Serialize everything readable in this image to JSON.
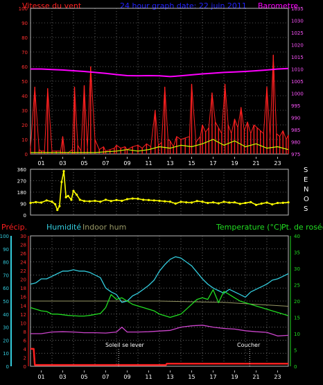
{
  "colors": {
    "wind": "#ff2020",
    "gust_base": "#ffffff",
    "gust_highlight": "#ccff00",
    "barometer": "#ff00ff",
    "direction": "#ffff00",
    "humidity": "#33ccdd",
    "indoor_hum": "#999966",
    "temperature": "#22dd22",
    "dewpoint": "#cc44cc",
    "precip": "#ff2020",
    "title": "#2222ff",
    "axis": "#bbbbbb",
    "grid": "#aaaaaa"
  },
  "chart_data": [
    {
      "type": "line",
      "title": "24 hour graph date: 22 juin 2011",
      "left_label": "Vitesse du vent",
      "right_label": "Barometre",
      "x_labels": [
        "01",
        "03",
        "05",
        "07",
        "09",
        "11",
        "13",
        "15",
        "17",
        "19",
        "21",
        "23"
      ],
      "y_left_ticks": [
        "0",
        "10",
        "20",
        "30",
        "40",
        "50",
        "60",
        "70",
        "80",
        "90",
        "100"
      ],
      "y_right_ticks": [
        "975",
        "980",
        "985",
        "990",
        "995",
        "1000",
        "1005",
        "1010",
        "1015",
        "1020",
        "1025",
        "1030",
        "1035"
      ],
      "y_left_range": [
        0,
        100
      ],
      "y_right_range": [
        975,
        1035
      ],
      "grid": true,
      "series": [
        {
          "key": "barometer",
          "axis": "right",
          "x": [
            0,
            1,
            2,
            3,
            4,
            5,
            6,
            7,
            8,
            9,
            10,
            11,
            12,
            13,
            14,
            15,
            16,
            17,
            18,
            19,
            20,
            21,
            22,
            23,
            24
          ],
          "values": [
            1010,
            1010,
            1009.8,
            1009.6,
            1009.3,
            1009,
            1008.6,
            1008.2,
            1007.7,
            1007.3,
            1007.2,
            1007.3,
            1007.2,
            1006.9,
            1007.2,
            1007.6,
            1008,
            1008.3,
            1008.6,
            1008.8,
            1009,
            1009.3,
            1009.6,
            1010,
            1010.2
          ]
        },
        {
          "key": "wind",
          "axis": "left",
          "x": [
            0,
            0.4,
            0.8,
            1,
            1.3,
            1.6,
            2,
            2.4,
            2.8,
            3,
            3.2,
            3.5,
            3.9,
            4.1,
            4.4,
            4.7,
            5,
            5.3,
            5.6,
            6,
            6.4,
            6.8,
            7,
            7.4,
            7.8,
            8,
            8.4,
            8.8,
            9,
            9.5,
            10,
            10.4,
            10.8,
            11.2,
            11.6,
            11.9,
            12.2,
            12.5,
            12.8,
            13,
            13.3,
            13.6,
            14,
            14.4,
            14.8,
            15,
            15.4,
            15.8,
            16,
            16.3,
            16.6,
            16.9,
            17.2,
            17.5,
            17.8,
            18.1,
            18.4,
            18.7,
            19,
            19.3,
            19.6,
            19.9,
            20.2,
            20.5,
            20.8,
            21.1,
            21.4,
            21.7,
            22,
            22.3,
            22.6,
            22.9,
            23.2,
            23.5,
            23.8,
            24
          ],
          "values": [
            4,
            46,
            3,
            2,
            2,
            45,
            2,
            2,
            2,
            12,
            1,
            1,
            3,
            46,
            6,
            2,
            47,
            4,
            60,
            10,
            3,
            5,
            2,
            3,
            4,
            6,
            4,
            5,
            3,
            5,
            6,
            4,
            7,
            5,
            30,
            6,
            8,
            46,
            10,
            9,
            5,
            12,
            10,
            11,
            12,
            48,
            8,
            12,
            20,
            15,
            18,
            42,
            22,
            18,
            14,
            48,
            20,
            14,
            24,
            18,
            32,
            16,
            22,
            14,
            20,
            18,
            16,
            14,
            46,
            12,
            68,
            14,
            12,
            16,
            10,
            13
          ]
        },
        {
          "key": "gust",
          "axis": "left",
          "x": [
            0,
            2,
            4,
            6,
            8,
            9,
            10,
            11,
            12,
            13,
            14,
            15,
            16,
            17,
            18,
            19,
            20,
            21,
            22,
            23,
            24
          ],
          "values": [
            1,
            1,
            1,
            1,
            2,
            3,
            2,
            3,
            5,
            4,
            6,
            5,
            7,
            10,
            6,
            9,
            5,
            7,
            4,
            5,
            3
          ]
        }
      ]
    },
    {
      "type": "scatter",
      "right_label": "S E N O S",
      "y_ticks": [
        "0",
        "90",
        "180",
        "270",
        "360"
      ],
      "y_range": [
        0,
        360
      ],
      "grid": true,
      "series": [
        {
          "key": "direction",
          "x": [
            0,
            0.5,
            1,
            1.5,
            2,
            2.3,
            2.5,
            2.7,
            2.9,
            3.1,
            3.3,
            3.5,
            3.8,
            4,
            4.3,
            4.6,
            5,
            5.5,
            6,
            6.5,
            7,
            7.5,
            8,
            8.5,
            9,
            9.5,
            10,
            10.5,
            11,
            11.5,
            12,
            12.5,
            13,
            13.5,
            14,
            14.5,
            15,
            15.5,
            16,
            16.5,
            17,
            17.5,
            18,
            18.5,
            19,
            19.5,
            20,
            20.5,
            21,
            21.5,
            22,
            22.5,
            23,
            23.5,
            24
          ],
          "values": [
            95,
            102,
            98,
            115,
            105,
            85,
            40,
            70,
            260,
            345,
            140,
            150,
            120,
            190,
            160,
            120,
            110,
            108,
            112,
            105,
            120,
            110,
            118,
            112,
            125,
            130,
            128,
            120,
            118,
            115,
            112,
            108,
            105,
            90,
            104,
            100,
            98,
            110,
            105,
            95,
            100,
            92,
            104,
            98,
            100,
            88,
            95,
            102,
            80,
            90,
            98,
            84,
            95,
            96,
            100
          ]
        }
      ]
    },
    {
      "type": "line",
      "labels": [
        "Précip.",
        "Humidité",
        "Indoor hum",
        "Temperature (°C)",
        "Pt. de rosée"
      ],
      "y_precip_ticks": [
        "0",
        "2",
        "4",
        "6",
        "8",
        "10",
        "12",
        "14",
        "16",
        "18",
        "20",
        "22",
        "24",
        "26",
        "28",
        "30"
      ],
      "y_humidity_ticks": [
        "0",
        "10",
        "20",
        "30",
        "40",
        "50",
        "60",
        "70",
        "80",
        "90",
        "100"
      ],
      "y_temp_ticks": [
        "0",
        "5",
        "10",
        "15",
        "20",
        "25",
        "30",
        "35",
        "40"
      ],
      "y_humidity_range": [
        0,
        100
      ],
      "y_temp_range": [
        0,
        40
      ],
      "y_precip_range": [
        0,
        30
      ],
      "x_labels": [
        "01",
        "03",
        "05",
        "07",
        "09",
        "11",
        "13",
        "15",
        "17",
        "19",
        "21",
        "23"
      ],
      "annotations": [
        "Soleil se lever",
        "Coucher"
      ],
      "grid": true,
      "series": [
        {
          "key": "humidity",
          "axis": "humidity",
          "x": [
            0,
            0.5,
            1,
            1.5,
            2,
            2.5,
            3,
            3.5,
            4,
            4.5,
            5,
            5.5,
            6,
            6.5,
            7,
            7.5,
            8,
            8.5,
            9,
            9.5,
            10,
            10.5,
            11,
            11.5,
            12,
            12.5,
            13,
            13.5,
            14,
            14.5,
            15,
            15.5,
            16,
            16.5,
            17,
            17.5,
            18,
            18.5,
            19,
            19.5,
            20,
            20.5,
            21,
            21.5,
            22,
            22.5,
            23,
            23.5,
            24
          ],
          "values": [
            63,
            64,
            67,
            67,
            69,
            71,
            73,
            73,
            74,
            73,
            73,
            72,
            70,
            68,
            60,
            57,
            55,
            49,
            50,
            54,
            56,
            59,
            62,
            66,
            73,
            78,
            82,
            84,
            83,
            80,
            77,
            72,
            67,
            63,
            60,
            58,
            56,
            59,
            57,
            55,
            53,
            57,
            59,
            61,
            63,
            66,
            67,
            69,
            71
          ]
        },
        {
          "key": "indoor_hum",
          "axis": "humidity",
          "x": [
            0,
            6,
            12,
            18,
            24
          ],
          "values": [
            50,
            50,
            50,
            49,
            46
          ]
        },
        {
          "key": "temperature",
          "axis": "temp",
          "x": [
            0,
            0.5,
            1,
            1.5,
            2,
            2.5,
            3,
            3.5,
            4,
            4.5,
            5,
            5.5,
            6,
            6.5,
            7,
            7.5,
            8,
            8.5,
            9,
            9.5,
            10,
            10.5,
            11,
            11.5,
            12,
            12.5,
            13,
            13.5,
            14,
            14.5,
            15,
            15.5,
            16,
            16.5,
            17,
            17.5,
            18,
            18.5,
            19,
            19.5,
            20,
            20.5,
            21,
            21.5,
            22,
            22.5,
            23,
            23.5,
            24
          ],
          "values": [
            18,
            17.5,
            17,
            16.8,
            16,
            16,
            15.8,
            15.6,
            15.5,
            15.4,
            15.4,
            15.6,
            15.9,
            16.2,
            18,
            22,
            20.5,
            21,
            20,
            19,
            18.5,
            18,
            17.5,
            17,
            16,
            15.5,
            15,
            15.5,
            16,
            17.5,
            19,
            20.5,
            21,
            20.5,
            23.5,
            19.5,
            23,
            22,
            21,
            20,
            19.5,
            19,
            18.5,
            18,
            17.5,
            17,
            16.5,
            16,
            15.5
          ]
        },
        {
          "key": "dewpoint",
          "axis": "temp",
          "x": [
            0,
            1,
            2,
            3,
            4,
            5,
            6,
            7,
            8,
            8.5,
            9,
            10,
            11,
            12,
            13,
            14,
            15,
            16,
            17,
            18,
            19,
            20,
            21,
            22,
            23,
            24
          ],
          "values": [
            10,
            10,
            10.5,
            10.6,
            10.5,
            10.3,
            10.3,
            10.2,
            10.5,
            12,
            10.5,
            10.5,
            10.6,
            10.8,
            11,
            12,
            12.4,
            12.6,
            12,
            11.6,
            11.4,
            10.9,
            10.6,
            10.4,
            9.3,
            9.5
          ]
        },
        {
          "key": "precip",
          "axis": "precip",
          "x": [
            0,
            0.2,
            0.3,
            0.4,
            12.6,
            12.7,
            24
          ],
          "values": [
            4,
            4,
            4,
            0.3,
            0.3,
            0.6,
            0.6
          ]
        }
      ]
    }
  ]
}
